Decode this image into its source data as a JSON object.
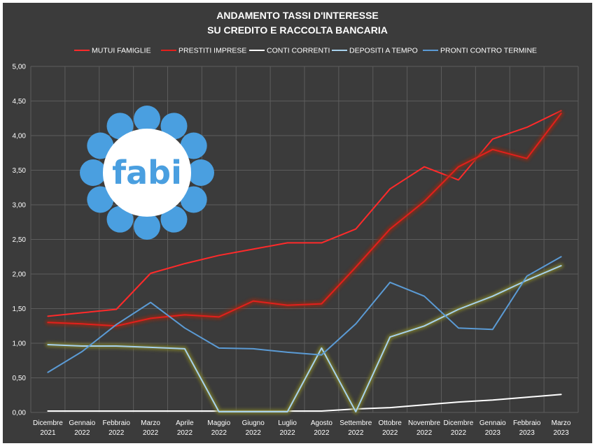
{
  "chart_data": {
    "type": "line",
    "title_lines": [
      "ANDAMENTO TASSI D'INTERESSE",
      "SU CREDITO E RACCOLTA BANCARIA"
    ],
    "categories": [
      [
        "Dicembre",
        "2021"
      ],
      [
        "Gennaio",
        "2022"
      ],
      [
        "Febbraio",
        "2022"
      ],
      [
        "Marzo",
        "2022"
      ],
      [
        "Aprile",
        "2022"
      ],
      [
        "Maggio",
        "2022"
      ],
      [
        "Giugno",
        "2022"
      ],
      [
        "Luglio",
        "2022"
      ],
      [
        "Agosto",
        "2022"
      ],
      [
        "Settembre",
        "2022"
      ],
      [
        "Ottobre",
        "2022"
      ],
      [
        "Novembre",
        "2022"
      ],
      [
        "Dicembre",
        "2022"
      ],
      [
        "Gennaio",
        "2023"
      ],
      [
        "Febbraio",
        "2023"
      ],
      [
        "Marzo",
        "2023"
      ]
    ],
    "ylim": [
      0,
      5
    ],
    "yticks": [
      "0,00",
      "0,50",
      "1,00",
      "1,50",
      "2,00",
      "2,50",
      "3,00",
      "3,50",
      "4,00",
      "4,50",
      "5,00"
    ],
    "grid": true,
    "legend_position": "top",
    "series": [
      {
        "name": "MUTUI FAMIGLIE",
        "color": "#ff2a2a",
        "glow": "",
        "values": [
          1.39,
          1.44,
          1.49,
          2.01,
          2.15,
          2.27,
          2.36,
          2.45,
          2.45,
          2.65,
          3.23,
          3.55,
          3.36,
          3.95,
          4.12,
          4.36
        ]
      },
      {
        "name": "PRESTITI IMPRESE",
        "color": "#e2201c",
        "glow": "#8a2a18",
        "values": [
          1.3,
          1.28,
          1.25,
          1.36,
          1.41,
          1.38,
          1.61,
          1.55,
          1.57,
          2.1,
          2.65,
          3.05,
          3.55,
          3.8,
          3.67,
          4.32
        ]
      },
      {
        "name": "CONTI CORRENTI",
        "color": "#ffffff",
        "glow": "",
        "values": [
          0.02,
          0.02,
          0.02,
          0.02,
          0.02,
          0.02,
          0.02,
          0.02,
          0.02,
          0.05,
          0.07,
          0.11,
          0.15,
          0.18,
          0.22,
          0.26
        ]
      },
      {
        "name": "DEPOSITI A TEMPO",
        "color": "#a8d2ee",
        "glow": "#7a7a2a",
        "values": [
          0.98,
          0.96,
          0.96,
          0.94,
          0.92,
          0.01,
          0.01,
          0.01,
          0.93,
          0.01,
          1.09,
          1.25,
          1.49,
          1.68,
          1.91,
          2.12
        ]
      },
      {
        "name": "PRONTI CONTRO TERMINE",
        "color": "#5b9bd5",
        "glow": "",
        "values": [
          0.58,
          0.88,
          1.27,
          1.59,
          1.22,
          0.93,
          0.92,
          0.87,
          0.83,
          1.28,
          1.88,
          1.68,
          1.22,
          1.2,
          1.97,
          2.25
        ]
      }
    ]
  },
  "logo": {
    "text": "fabi",
    "petal_color": "#4a9fe0",
    "center_color": "#ffffff"
  },
  "colors": {
    "background": "#3b3b3b",
    "gridline": "#5c5c5c",
    "text": "#ffffff"
  }
}
